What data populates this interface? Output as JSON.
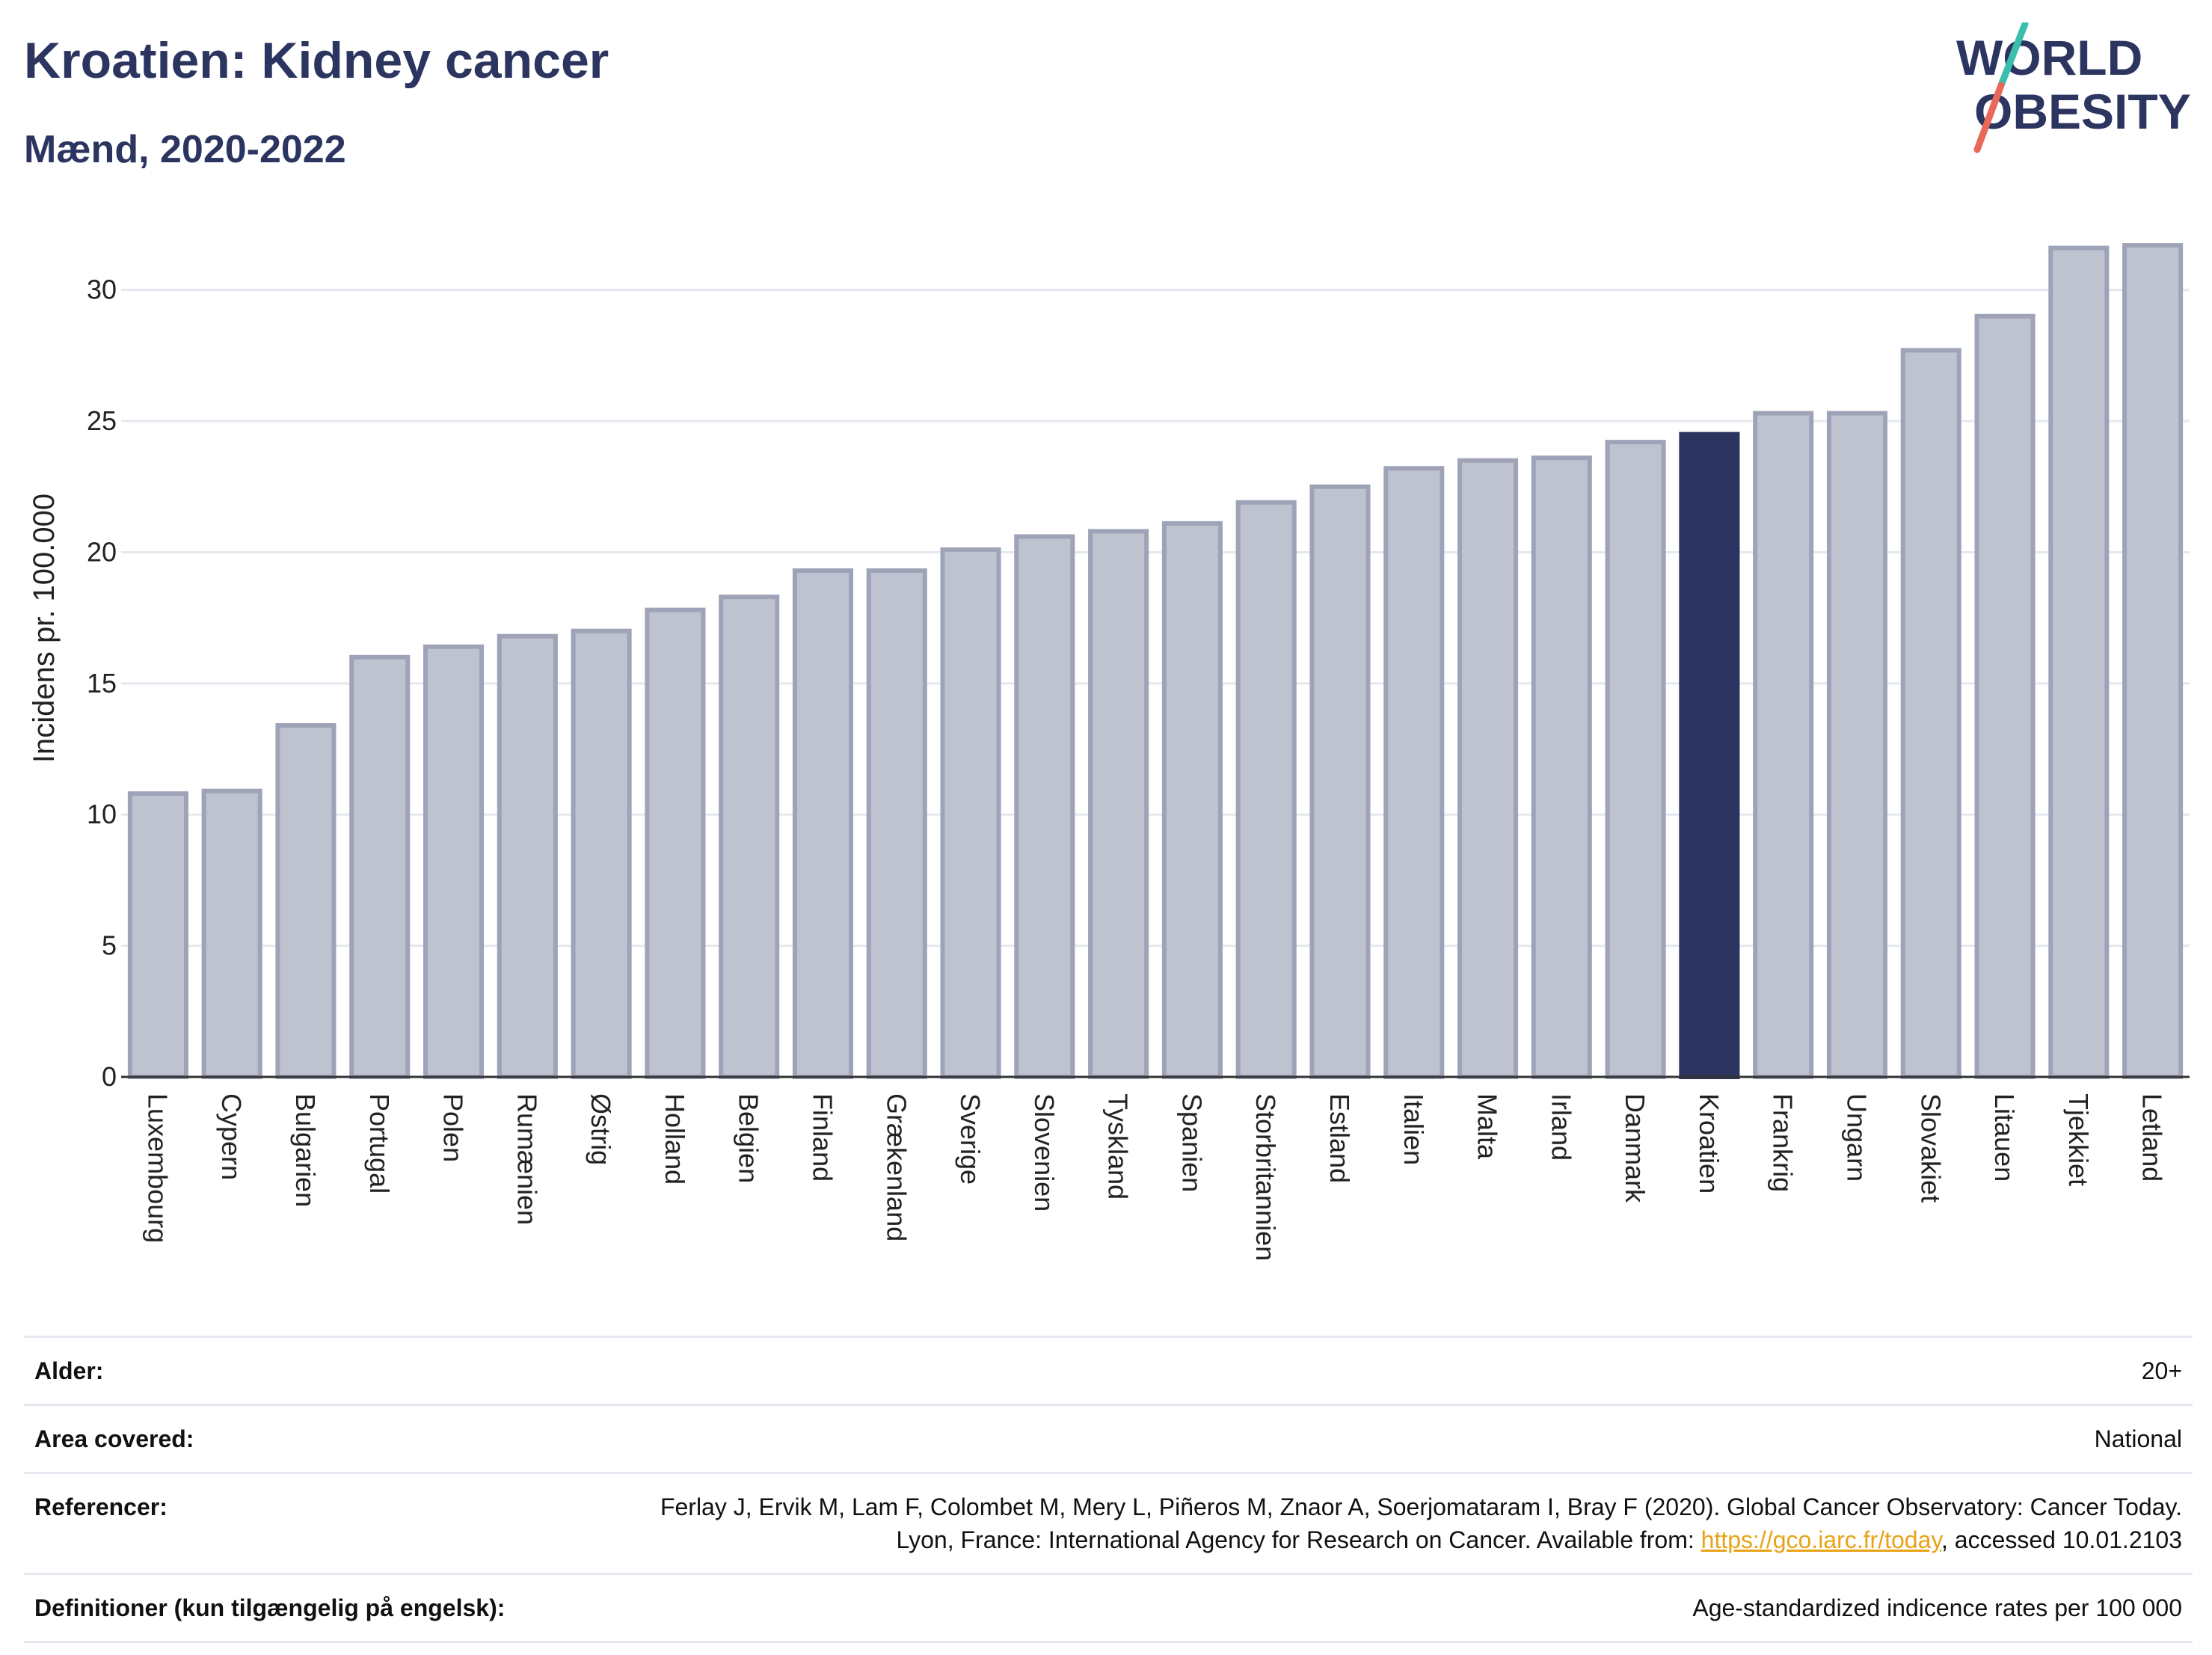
{
  "header": {
    "title": "Kroatien: Kidney cancer",
    "subtitle": "Mænd, 2020-2022"
  },
  "logo": {
    "line1": "WORLD",
    "line2": "OBESITY",
    "colors": {
      "text": "#2b3560",
      "slash_top": "#3bbfad",
      "slash_bottom": "#e8685a"
    }
  },
  "colors": {
    "bar_fill": "#bfc2cf",
    "bar_stroke": "#9ea3b8",
    "highlight": "#2b3560",
    "grid": "#e6e8ef",
    "link": "#e8a317"
  },
  "chart_data": {
    "type": "bar",
    "ylabel": "Incidens pr. 100.000",
    "ylim": [
      0,
      32.5
    ],
    "yticks": [
      0,
      5,
      10,
      15,
      20,
      25,
      30
    ],
    "grid": true,
    "highlight": "Kroatien",
    "categories": [
      "Luxembourg",
      "Cypern",
      "Bulgarien",
      "Portugal",
      "Polen",
      "Rumænien",
      "Østrig",
      "Holland",
      "Belgien",
      "Finland",
      "Grækenland",
      "Sverige",
      "Slovenien",
      "Tyskland",
      "Spanien",
      "Storbritannien",
      "Estland",
      "Italien",
      "Malta",
      "Irland",
      "Danmark",
      "Kroatien",
      "Frankrig",
      "Ungarn",
      "Slovakiet",
      "Litauen",
      "Tjekkiet",
      "Letland"
    ],
    "values": [
      10.8,
      10.9,
      13.4,
      16.0,
      16.4,
      16.8,
      17.0,
      17.8,
      18.3,
      19.3,
      19.3,
      20.1,
      20.6,
      20.8,
      21.1,
      21.9,
      22.5,
      23.2,
      23.5,
      23.6,
      24.2,
      24.5,
      25.3,
      25.3,
      27.7,
      29.0,
      31.6,
      31.7
    ]
  },
  "meta": {
    "rows": [
      {
        "label": "Alder:",
        "value": "20+"
      },
      {
        "label": "Area covered:",
        "value": "National"
      },
      {
        "label": "Referencer:",
        "value": "Ferlay J, Ervik M, Lam F, Colombet M, Mery L, Piñeros M, Znaor A, Soerjomataram I, Bray F (2020). Global Cancer Observatory: Cancer Today. Lyon, France: International Agency for Research on Cancer. Available from: ",
        "link": "https://gco.iarc.fr/today",
        "suffix": ", accessed 10.01.2103"
      },
      {
        "label": "Definitioner (kun tilgængelig på engelsk):",
        "value": "Age-standardized indicence rates per 100 000"
      }
    ]
  }
}
